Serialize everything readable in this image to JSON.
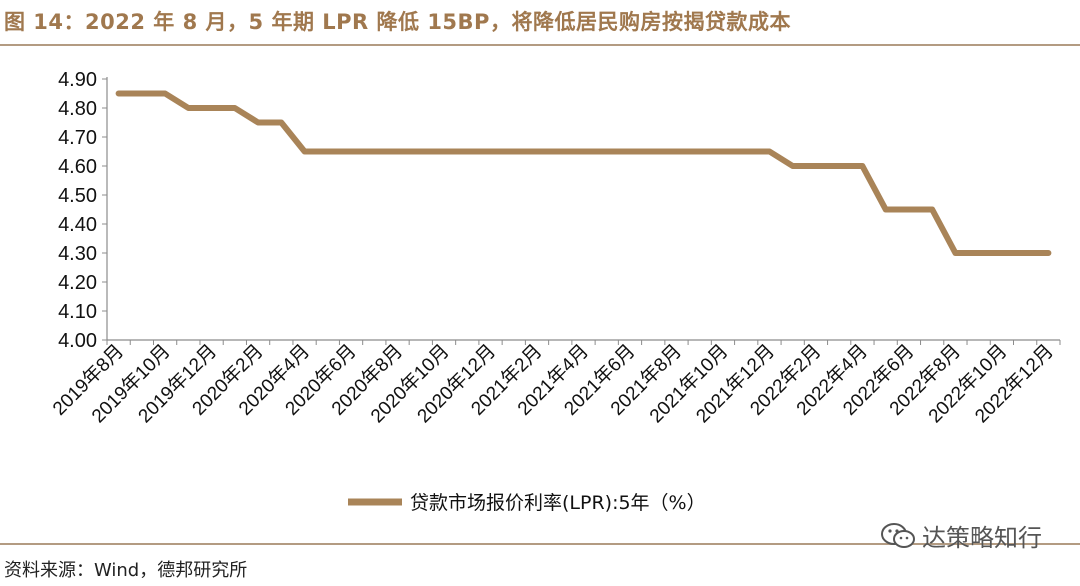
{
  "figure": {
    "title": "图 14：2022 年 8 月，5 年期 LPR 降低 15BP，将降低居民购房按揭贷款成本",
    "source": "资料来源：Wind，德邦研究所",
    "watermark": "达策略知行",
    "line_color": "#a98458"
  },
  "chart_data": {
    "type": "line",
    "title": "",
    "xlabel": "",
    "ylabel": "",
    "ylim": [
      4.0,
      4.9
    ],
    "yticks": [
      "4.90",
      "4.80",
      "4.70",
      "4.60",
      "4.50",
      "4.40",
      "4.30",
      "4.20",
      "4.10",
      "4.00"
    ],
    "ytick_values": [
      4.9,
      4.8,
      4.7,
      4.6,
      4.5,
      4.4,
      4.3,
      4.2,
      4.1,
      4.0
    ],
    "xtick_labels": [
      "2019年8月",
      "2019年10月",
      "2019年12月",
      "2020年2月",
      "2020年4月",
      "2020年6月",
      "2020年8月",
      "2020年10月",
      "2020年12月",
      "2021年2月",
      "2021年4月",
      "2021年6月",
      "2021年8月",
      "2021年10月",
      "2021年12月",
      "2022年2月",
      "2022年4月",
      "2022年6月",
      "2022年8月",
      "2022年10月",
      "2022年12月"
    ],
    "x": [
      "2019-08",
      "2019-09",
      "2019-10",
      "2019-11",
      "2019-12",
      "2020-01",
      "2020-02",
      "2020-03",
      "2020-04",
      "2020-05",
      "2020-06",
      "2020-07",
      "2020-08",
      "2020-09",
      "2020-10",
      "2020-11",
      "2020-12",
      "2021-01",
      "2021-02",
      "2021-03",
      "2021-04",
      "2021-05",
      "2021-06",
      "2021-07",
      "2021-08",
      "2021-09",
      "2021-10",
      "2021-11",
      "2021-12",
      "2022-01",
      "2022-02",
      "2022-03",
      "2022-04",
      "2022-05",
      "2022-06",
      "2022-07",
      "2022-08",
      "2022-09",
      "2022-10",
      "2022-11",
      "2022-12"
    ],
    "series": [
      {
        "name": "贷款市场报价利率(LPR):5年（%）",
        "values": [
          4.85,
          4.85,
          4.85,
          4.8,
          4.8,
          4.8,
          4.75,
          4.75,
          4.65,
          4.65,
          4.65,
          4.65,
          4.65,
          4.65,
          4.65,
          4.65,
          4.65,
          4.65,
          4.65,
          4.65,
          4.65,
          4.65,
          4.65,
          4.65,
          4.65,
          4.65,
          4.65,
          4.65,
          4.65,
          4.6,
          4.6,
          4.6,
          4.6,
          4.45,
          4.45,
          4.45,
          4.3,
          4.3,
          4.3,
          4.3,
          4.3
        ]
      }
    ],
    "grid": false,
    "legend": "bottom-center"
  }
}
